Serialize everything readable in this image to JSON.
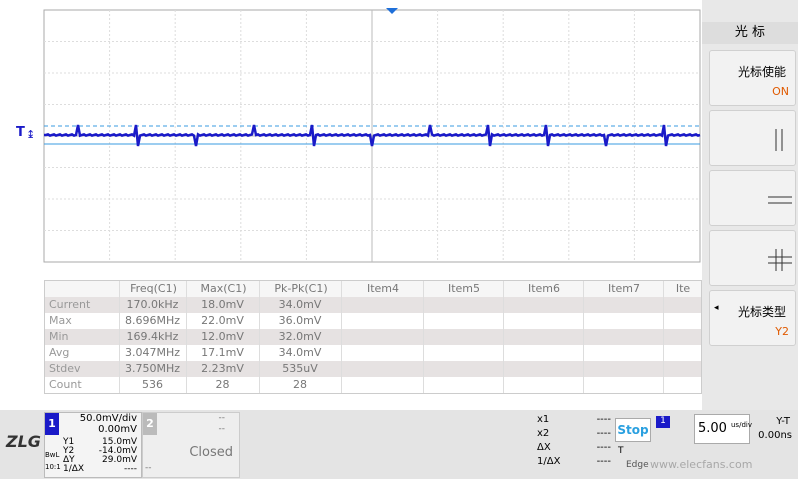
{
  "panel": {
    "title": "光 标",
    "enable": {
      "label": "光标使能",
      "value": "ON"
    },
    "type": {
      "label": "光标类型",
      "value": "Y2"
    }
  },
  "table": {
    "headers": [
      "Freq(C1)",
      "Max(C1)",
      "Pk-Pk(C1)",
      "Item4",
      "Item5",
      "Item6",
      "Item7",
      "Ite"
    ],
    "rows": [
      {
        "label": "Current",
        "cells": [
          "170.0kHz",
          "18.0mV",
          "34.0mV"
        ]
      },
      {
        "label": "Max",
        "cells": [
          "8.696MHz",
          "22.0mV",
          "36.0mV"
        ]
      },
      {
        "label": "Min",
        "cells": [
          "169.4kHz",
          "12.0mV",
          "32.0mV"
        ]
      },
      {
        "label": "Avg",
        "cells": [
          "3.047MHz",
          "17.1mV",
          "34.0mV"
        ]
      },
      {
        "label": "Stdev",
        "cells": [
          "3.750MHz",
          "2.23mV",
          "535uV"
        ]
      },
      {
        "label": "Count",
        "cells": [
          "536",
          "28",
          "28"
        ]
      }
    ]
  },
  "logo": "ZLG",
  "channel1": {
    "number": "1",
    "scale": "50.0mV/div",
    "offset": "0.00mV",
    "bandwidth": "BwL",
    "probe": "10:1",
    "cursors": [
      {
        "label": "Y1",
        "value": "15.0mV"
      },
      {
        "label": "Y2",
        "value": "-14.0mV"
      },
      {
        "label": "ΔY",
        "value": "29.0mV"
      },
      {
        "label": "1/ΔX",
        "value": "----"
      }
    ]
  },
  "channel2": {
    "number": "2",
    "scale": "--",
    "offset": "--",
    "status": "Closed",
    "extra": "--"
  },
  "xcursors": [
    {
      "label": "x1",
      "value": "----"
    },
    {
      "label": "x2",
      "value": "----"
    },
    {
      "label": "ΔX",
      "value": "----"
    },
    {
      "label": "1/ΔX",
      "value": "----"
    }
  ],
  "run": {
    "state": "Stop",
    "trigger_channel": "1",
    "timebase": "5.00",
    "unit": "us/div",
    "mode": "Y-T",
    "delay": "0.00ns",
    "trigger": "T",
    "trigger_type": "Edge"
  },
  "watermark": "www.elecfans.com"
}
